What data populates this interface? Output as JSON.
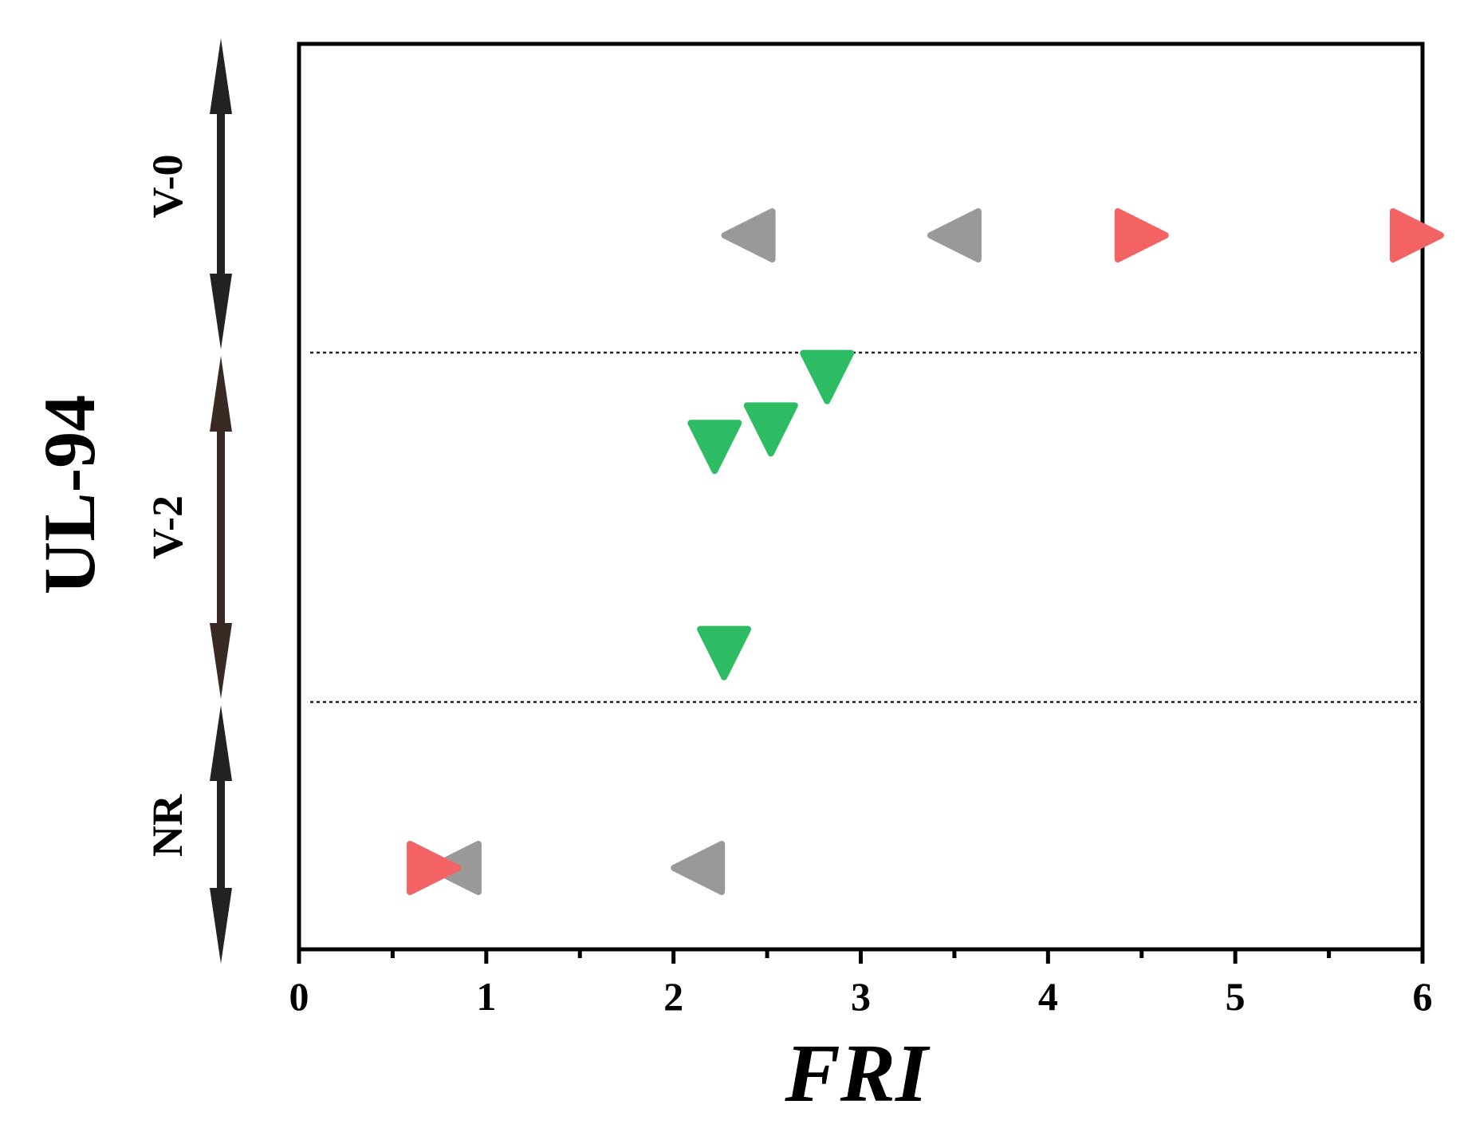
{
  "chart_data": {
    "type": "scatter",
    "title": "",
    "xlabel": "FRI",
    "ylabel": "UL-94",
    "xlim": [
      0,
      6
    ],
    "x_ticks": [
      "0",
      "1",
      "2",
      "3",
      "4",
      "5",
      "6"
    ],
    "y_categories": [
      "NR",
      "V-2",
      "V-0"
    ],
    "band_separators": true,
    "grid": false,
    "legend": "none",
    "series": [
      {
        "marker": "left-triangle",
        "color": "#999999",
        "points": [
          {
            "x": 2.4,
            "y": "V-0"
          },
          {
            "x": 3.5,
            "y": "V-0"
          },
          {
            "x": 0.83,
            "y": "NR"
          },
          {
            "x": 2.13,
            "y": "NR"
          }
        ]
      },
      {
        "marker": "right-triangle",
        "color": "#f36363",
        "points": [
          {
            "x": 4.5,
            "y": "V-0"
          },
          {
            "x": 5.97,
            "y": "V-0"
          },
          {
            "x": 0.72,
            "y": "NR"
          }
        ]
      },
      {
        "marker": "down-triangle",
        "color": "#2dbc63",
        "points": [
          {
            "x": 2.82,
            "y": "V-2",
            "level": 0.93
          },
          {
            "x": 2.52,
            "y": "V-2",
            "level": 0.78
          },
          {
            "x": 2.22,
            "y": "V-2",
            "level": 0.73
          },
          {
            "x": 2.27,
            "y": "V-2",
            "level": 0.14
          }
        ]
      }
    ],
    "category_arrow_colors": {
      "V-0": "#222222",
      "V-2": "#3a2a24",
      "NR": "#222222"
    }
  }
}
